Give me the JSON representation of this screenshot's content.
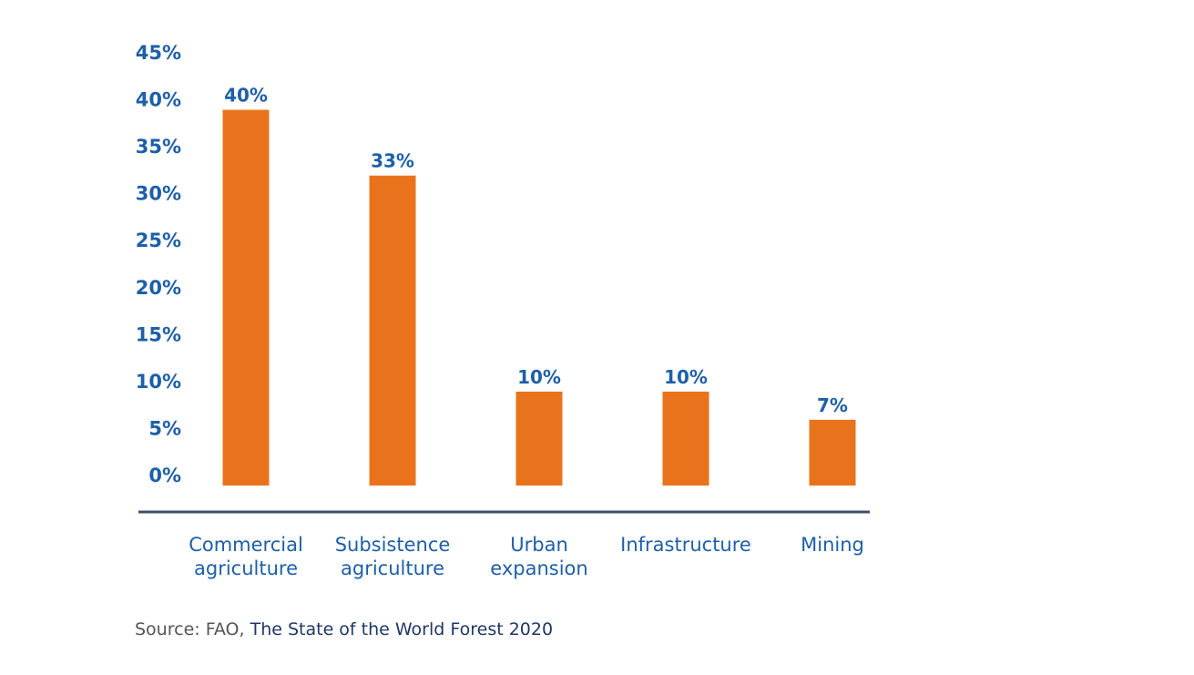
{
  "colors": {
    "bar": "#e9731c",
    "text": "#1e5fa8",
    "axis": "#3c4f6b",
    "source_text": "#555555",
    "source_title": "#1f3864"
  },
  "chart_data": {
    "type": "bar",
    "categories": [
      [
        "Commercial",
        "agriculture"
      ],
      [
        "Subsistence",
        "agriculture"
      ],
      [
        "Urban",
        "expansion"
      ],
      [
        "Infrastructure"
      ],
      [
        "Mining"
      ]
    ],
    "values": [
      40,
      33,
      10,
      10,
      7
    ],
    "data_labels": [
      "40%",
      "33%",
      "10%",
      "10%",
      "7%"
    ],
    "title": "",
    "xlabel": "",
    "ylabel": "",
    "ylim": [
      0,
      45
    ],
    "yticks": [
      0,
      5,
      10,
      15,
      20,
      25,
      30,
      35,
      40,
      45
    ],
    "ytick_labels": [
      "0%",
      "5%",
      "10%",
      "15%",
      "20%",
      "25%",
      "30%",
      "35%",
      "40%",
      "45%"
    ],
    "grid": false,
    "legend": "none"
  },
  "source": {
    "prefix": "Source: FAO, ",
    "title": "The State of the World Forest 2020"
  }
}
